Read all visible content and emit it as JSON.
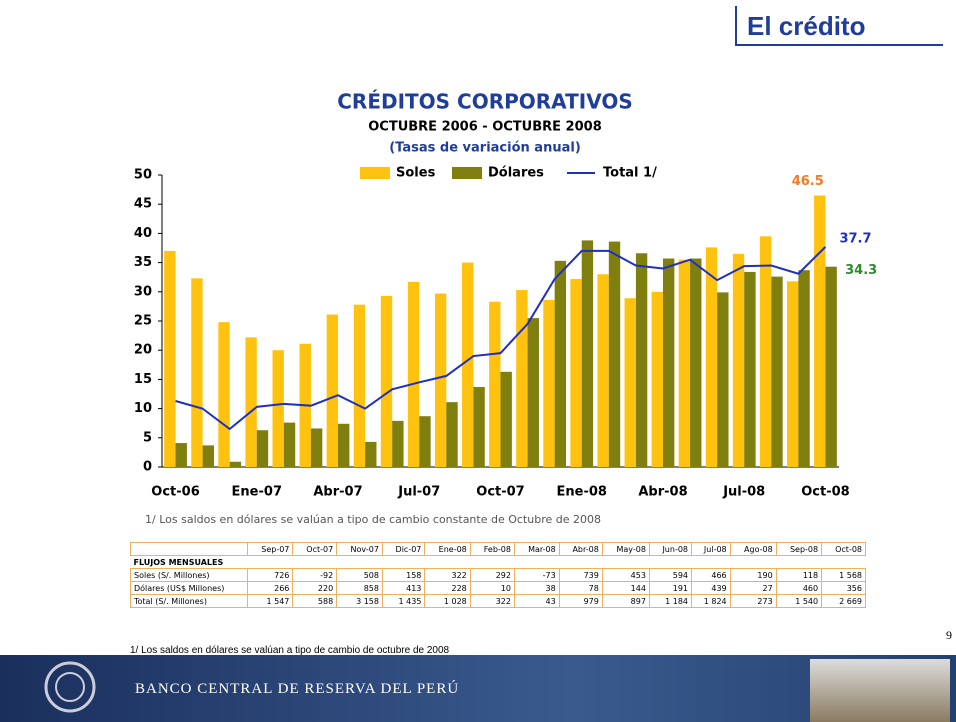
{
  "header": {
    "title": "El crédito",
    "page_number": "9"
  },
  "chart_data": {
    "type": "bar",
    "title": "CRÉDITOS CORPORATIVOS",
    "subtitle": "OCTUBRE 2006 - OCTUBRE 2008",
    "subtitle2": "(Tasas de variación anual)",
    "categories": [
      "Oct-06",
      null,
      null,
      "Ene-07",
      null,
      null,
      "Abr-07",
      null,
      null,
      "Jul-07",
      null,
      null,
      "Oct-07",
      null,
      null,
      "Ene-08",
      null,
      null,
      "Abr-08",
      null,
      null,
      "Jul-08",
      null,
      null,
      "Oct-08"
    ],
    "series": [
      {
        "name": "Soles",
        "type": "bar",
        "color": "#ffc20e",
        "end_label_color": "#f47920",
        "values": [
          37,
          32.3,
          24.8,
          22.2,
          20,
          21.1,
          26.1,
          27.8,
          29.3,
          31.7,
          29.7,
          35,
          28.3,
          30.3,
          28.6,
          32.2,
          33,
          28.9,
          30,
          35.5,
          37.6,
          36.5,
          39.5,
          31.8,
          46.5
        ]
      },
      {
        "name": "Dólares",
        "type": "bar",
        "color": "#7f7f10",
        "end_label_color": "#2e8b2e",
        "values": [
          4.1,
          3.7,
          0.9,
          6.3,
          7.6,
          6.6,
          7.4,
          4.3,
          7.9,
          8.7,
          11.1,
          13.7,
          16.3,
          25.5,
          35.3,
          38.8,
          38.6,
          36.6,
          35.7,
          35.7,
          29.9,
          33.4,
          32.6,
          33.7,
          34.3
        ]
      },
      {
        "name": "Total 1/",
        "type": "line",
        "color": "#1f2fbf",
        "end_label_color": "#1f2fbf",
        "values": [
          11.3,
          10,
          6.5,
          10.3,
          10.8,
          10.5,
          12.3,
          10,
          13.3,
          14.5,
          15.6,
          19,
          19.5,
          24.5,
          32.2,
          37,
          37,
          34.5,
          34,
          35.5,
          32,
          34.4,
          34.5,
          33.1,
          37.7
        ]
      }
    ],
    "ylim": [
      0,
      50
    ],
    "yticks": [
      0,
      5,
      10,
      15,
      20,
      25,
      30,
      35,
      40,
      45,
      50
    ],
    "footnote": "1/ Los saldos en dólares se valúan a tipo de cambio constante de Octubre de 2008"
  },
  "table": {
    "columns": [
      "Sep-07",
      "Oct-07",
      "Nov-07",
      "Dic-07",
      "Ene-08",
      "Feb-08",
      "Mar-08",
      "Abr-08",
      "May-08",
      "Jun-08",
      "Jul-08",
      "Ago-08",
      "Sep-08",
      "Oct-08"
    ],
    "section": "FLUJOS MENSUALES",
    "rows": [
      [
        "Soles (S/. Millones)",
        "726",
        "-92",
        "508",
        "158",
        "322",
        "292",
        "-73",
        "739",
        "453",
        "594",
        "466",
        "190",
        "118",
        "1 568"
      ],
      [
        "Dólares (US$ Millones)",
        "266",
        "220",
        "858",
        "413",
        "228",
        "10",
        "38",
        "78",
        "144",
        "191",
        "439",
        "27",
        "460",
        "356"
      ],
      [
        "Total (S/. Millones)",
        "1 547",
        "588",
        "3 158",
        "1 435",
        "1 028",
        "322",
        "43",
        "979",
        "897",
        "1 184",
        "1 824",
        "273",
        "1 540",
        "2 669"
      ]
    ]
  },
  "footnote": "1/ Los saldos en dólares se valúan a tipo de cambio de octubre de 2008",
  "footer": {
    "bank": "BANCO CENTRAL DE RESERVA DEL PERÚ"
  }
}
